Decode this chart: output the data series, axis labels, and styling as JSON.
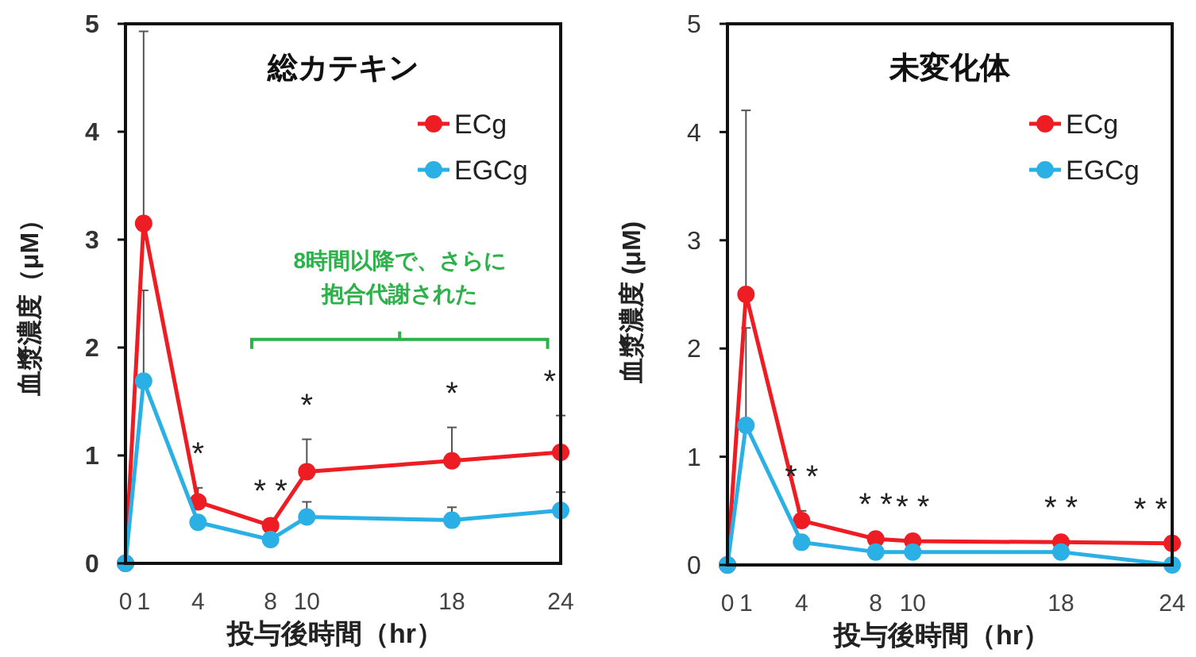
{
  "chart_data": [
    {
      "type": "line",
      "title": "総カテキン",
      "xlabel": "投与後時間（hr）",
      "ylabel": "血漿濃度（μM）",
      "x": [
        0,
        1,
        4,
        8,
        10,
        18,
        24
      ],
      "xlim": [
        0,
        24
      ],
      "ylim": [
        0,
        5
      ],
      "xticks": [
        0,
        1,
        4,
        8,
        10,
        18,
        24
      ],
      "yticks": [
        0,
        1,
        2,
        3,
        4,
        5
      ],
      "legend": "top right",
      "marker": "circle",
      "series": [
        {
          "name": "ECg",
          "color": "#ee1d23",
          "values": [
            0,
            3.15,
            0.57,
            0.35,
            0.85,
            0.95,
            1.03
          ],
          "errors": [
            null,
            [
              3.15,
              4.93
            ],
            [
              0.57,
              0.7
            ],
            null,
            [
              0.85,
              1.15
            ],
            [
              0.95,
              1.26
            ],
            [
              1.03,
              1.37
            ]
          ]
        },
        {
          "name": "EGCg",
          "color": "#2bb0e6",
          "values": [
            0,
            1.69,
            0.38,
            0.22,
            0.43,
            0.4,
            0.49
          ],
          "errors": [
            null,
            [
              1.69,
              2.53
            ],
            null,
            null,
            [
              0.43,
              0.57
            ],
            [
              0.4,
              0.52
            ],
            [
              0.49,
              0.66
            ]
          ]
        }
      ],
      "annotations": [
        {
          "text": "*",
          "x": 4,
          "y": 0.57
        },
        {
          "text": "* *",
          "x": 8,
          "y": 0.35
        },
        {
          "text": "*",
          "x": 10,
          "y": 0.85
        },
        {
          "text": "*",
          "x": 18,
          "y": 0.95
        },
        {
          "text": "*",
          "x": 24,
          "y": 1.03
        },
        "8時間以降で、さらに抱合代謝された"
      ]
    },
    {
      "type": "line",
      "title": "未変化体",
      "xlabel": "投与後時間（hr）",
      "ylabel": "血漿濃度 (μM)",
      "x": [
        0,
        1,
        4,
        8,
        10,
        18,
        24
      ],
      "xlim": [
        0,
        24
      ],
      "ylim": [
        0,
        5
      ],
      "xticks": [
        0,
        1,
        4,
        8,
        10,
        18,
        24
      ],
      "yticks": [
        0,
        1,
        2,
        3,
        4,
        5
      ],
      "legend": "top right",
      "marker": "circle",
      "series": [
        {
          "name": "ECg",
          "color": "#ee1d23",
          "values": [
            0,
            2.5,
            0.41,
            0.24,
            0.22,
            0.21,
            0.2
          ],
          "errors": [
            null,
            [
              2.5,
              4.2
            ],
            [
              0.41,
              0.5
            ],
            null,
            null,
            null,
            null
          ]
        },
        {
          "name": "EGCg",
          "color": "#2bb0e6",
          "values": [
            0,
            1.29,
            0.21,
            0.12,
            0.12,
            0.12,
            0
          ],
          "errors": [
            null,
            [
              1.29,
              2.19
            ],
            null,
            null,
            null,
            null,
            null
          ]
        }
      ],
      "annotations": [
        {
          "text": "* *",
          "x": 4,
          "y": 0.41
        },
        {
          "text": "* *",
          "x": 8,
          "y": 0.24
        },
        {
          "text": "* *",
          "x": 10,
          "y": 0.22
        },
        {
          "text": "* *",
          "x": 18,
          "y": 0.21
        },
        {
          "text": "* *",
          "x": 24,
          "y": 0.2
        }
      ]
    }
  ]
}
